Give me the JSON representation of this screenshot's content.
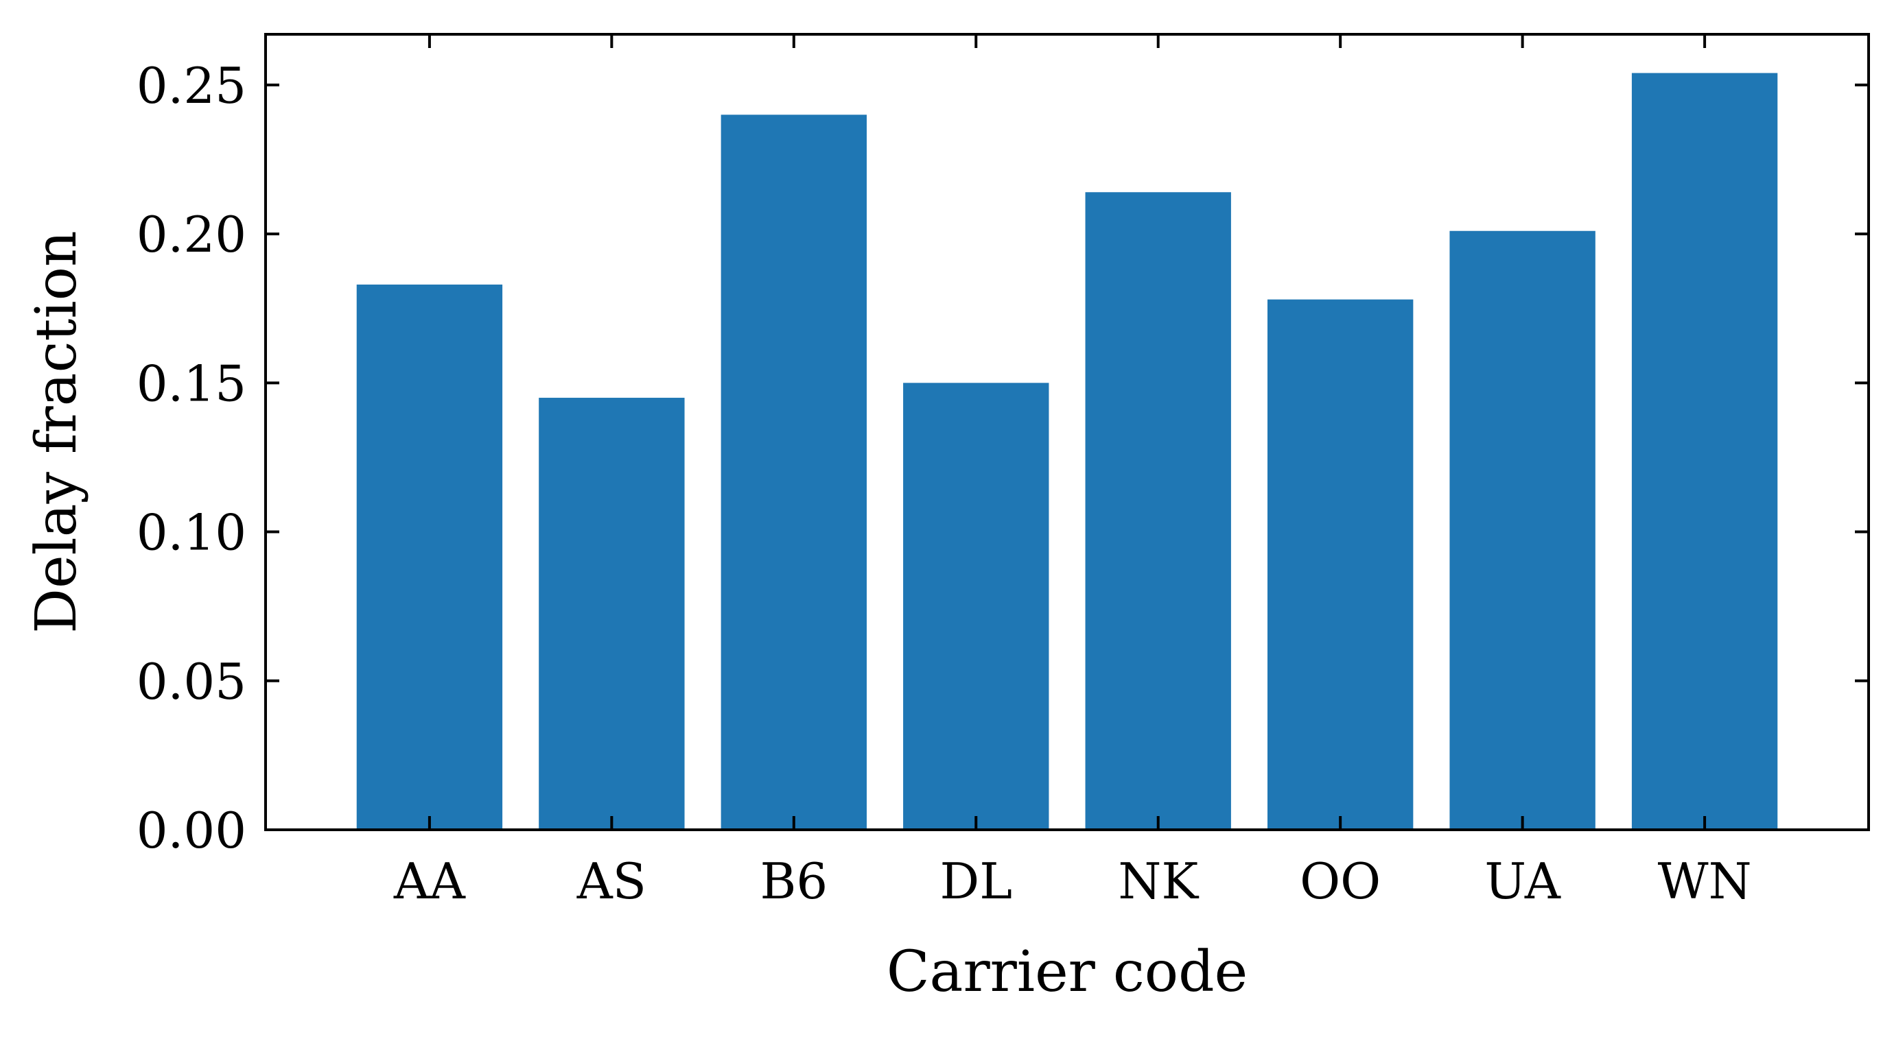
{
  "chart_data": {
    "type": "bar",
    "categories": [
      "AA",
      "AS",
      "B6",
      "DL",
      "NK",
      "OO",
      "UA",
      "WN"
    ],
    "values": [
      0.183,
      0.145,
      0.24,
      0.15,
      0.214,
      0.178,
      0.201,
      0.254
    ],
    "title": "",
    "xlabel": "Carrier code",
    "ylabel": "Delay fraction",
    "ylim": [
      0,
      0.267
    ],
    "yticks": [
      0.0,
      0.05,
      0.1,
      0.15,
      0.2,
      0.25
    ],
    "ytick_labels": [
      "0.00",
      "0.05",
      "0.10",
      "0.15",
      "0.20",
      "0.25"
    ],
    "grid": false,
    "legend": "none",
    "bar_color": "#1f77b4",
    "ticks_mirrored": true,
    "tick_direction": "in"
  }
}
